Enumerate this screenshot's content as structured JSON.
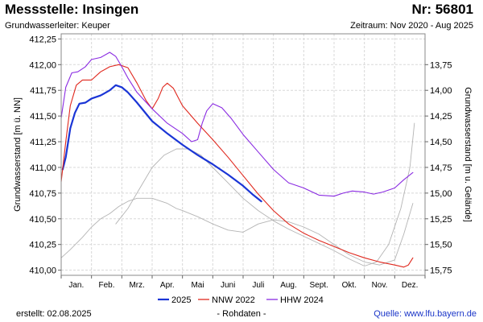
{
  "header": {
    "title": "Messstelle: Insingen",
    "station_number": "Nr: 56801",
    "aquifer": "Grundwasserleiter: Keuper",
    "period": "Zeitraum: Nov 2020 - Aug 2025"
  },
  "footer": {
    "created": "erstellt:  02.08.2025",
    "raw": "- Rohdaten -",
    "source": "Quelle: www.lfu.bayern.de"
  },
  "chart_data": {
    "type": "line",
    "ylabel": "Grundwasserstand [m ü. NN]",
    "y2label": "Grundwasserstand [m u. Gelände]",
    "ylim": [
      409.95,
      412.3
    ],
    "yticks": [
      "412,25",
      "412,00",
      "411,75",
      "411,50",
      "411,25",
      "411,00",
      "410,75",
      "410,50",
      "410,25",
      "410,00"
    ],
    "ytick_values": [
      412.25,
      412.0,
      411.75,
      411.5,
      411.25,
      411.0,
      410.75,
      410.5,
      410.25,
      410.0
    ],
    "y2ticks": [
      "13,75",
      "14,00",
      "14,25",
      "14,50",
      "14,75",
      "15,00",
      "15,25",
      "15,50",
      "15,75"
    ],
    "y2tick_values": [
      13.75,
      14.0,
      14.25,
      14.5,
      14.75,
      15.0,
      15.25,
      15.5,
      15.75
    ],
    "y2_offset": 425.75,
    "x_months": [
      "Jan.",
      "Feb.",
      "Mrz.",
      "Apr.",
      "Mai",
      "Juni",
      "Juli",
      "Aug.",
      "Sept.",
      "Okt.",
      "Nov.",
      "Dez."
    ],
    "xlim": [
      0,
      12
    ],
    "grid": true,
    "legend_position": "bottom",
    "series": [
      {
        "name": "2025",
        "color": "#1a35d6",
        "x": [
          0.05,
          0.15,
          0.3,
          0.45,
          0.6,
          0.8,
          1.0,
          1.3,
          1.6,
          1.8,
          2.0,
          2.2,
          2.5,
          3.0,
          3.5,
          4.0,
          4.5,
          5.0,
          5.5,
          6.0,
          6.3,
          6.6
        ],
        "y": [
          410.98,
          411.1,
          411.38,
          411.53,
          411.62,
          411.63,
          411.67,
          411.7,
          411.75,
          411.8,
          411.78,
          411.73,
          411.63,
          411.45,
          411.33,
          411.22,
          411.12,
          411.03,
          410.93,
          410.82,
          410.74,
          410.67
        ]
      },
      {
        "name": "NNW 2022",
        "color": "#e0281e",
        "x": [
          0.0,
          0.15,
          0.3,
          0.5,
          0.7,
          1.0,
          1.3,
          1.6,
          1.9,
          2.2,
          2.5,
          2.8,
          3.0,
          3.2,
          3.35,
          3.5,
          3.7,
          4.0,
          4.5,
          5.0,
          5.5,
          6.0,
          6.5,
          7.0,
          7.5,
          8.0,
          8.5,
          9.0,
          9.5,
          10.0,
          10.5,
          11.0,
          11.3,
          11.45,
          11.6
        ],
        "y": [
          410.86,
          411.25,
          411.6,
          411.8,
          411.85,
          411.85,
          411.93,
          411.98,
          412.0,
          411.97,
          411.82,
          411.65,
          411.57,
          411.67,
          411.78,
          411.82,
          411.77,
          411.6,
          411.43,
          411.27,
          411.1,
          410.92,
          410.74,
          410.58,
          410.45,
          410.36,
          410.29,
          410.23,
          410.17,
          410.12,
          410.08,
          410.05,
          410.03,
          410.05,
          410.12
        ]
      },
      {
        "name": "HHW 2024",
        "color": "#8a2be2",
        "x": [
          0.0,
          0.15,
          0.35,
          0.55,
          0.8,
          1.0,
          1.3,
          1.6,
          1.8,
          2.0,
          2.2,
          2.5,
          3.0,
          3.5,
          4.0,
          4.3,
          4.5,
          4.65,
          4.8,
          5.0,
          5.3,
          5.6,
          6.0,
          6.5,
          7.0,
          7.5,
          8.0,
          8.5,
          9.0,
          9.3,
          9.6,
          10.0,
          10.3,
          10.6,
          11.0,
          11.3,
          11.6
        ],
        "y": [
          411.48,
          411.78,
          411.92,
          411.93,
          411.98,
          412.05,
          412.07,
          412.12,
          412.08,
          411.98,
          411.87,
          411.73,
          411.57,
          411.43,
          411.33,
          411.25,
          411.27,
          411.43,
          411.55,
          411.62,
          411.58,
          411.48,
          411.32,
          411.15,
          410.98,
          410.85,
          410.8,
          410.73,
          410.72,
          410.75,
          410.77,
          410.76,
          410.74,
          410.76,
          410.8,
          410.88,
          410.95
        ]
      },
      {
        "name": "",
        "color": "#b4b4b4",
        "x": [
          0.0,
          0.3,
          0.7,
          1.0,
          1.3,
          1.6,
          1.9,
          2.2,
          2.5,
          2.8,
          3.0,
          3.2,
          3.5,
          3.8,
          4.0,
          4.5,
          5.0,
          5.5,
          6.0,
          6.5,
          7.0,
          7.5,
          8.0,
          8.5,
          9.0,
          9.5,
          10.0,
          10.5,
          11.0,
          11.3,
          11.6
        ],
        "y": [
          410.12,
          410.2,
          410.32,
          410.42,
          410.5,
          410.55,
          410.62,
          410.67,
          410.7,
          410.7,
          410.7,
          410.68,
          410.65,
          410.6,
          410.58,
          410.52,
          410.45,
          410.39,
          410.37,
          410.45,
          410.49,
          410.47,
          410.42,
          410.35,
          410.25,
          410.15,
          410.08,
          410.05,
          410.1,
          410.35,
          410.65
        ]
      },
      {
        "name": "",
        "color": "#b4b4b4",
        "x": [
          1.8,
          2.2,
          2.6,
          3.0,
          3.4,
          3.8,
          4.2,
          4.6,
          5.0,
          5.5,
          6.0,
          6.5,
          7.0,
          7.5,
          8.0,
          8.5,
          9.0,
          9.5,
          10.0,
          10.4,
          10.8,
          11.2,
          11.5,
          11.65
        ],
        "y": [
          410.45,
          410.6,
          410.8,
          411.0,
          411.12,
          411.18,
          411.18,
          411.12,
          411.0,
          410.85,
          410.7,
          410.58,
          410.48,
          410.4,
          410.33,
          410.26,
          410.19,
          410.11,
          410.04,
          410.08,
          410.25,
          410.6,
          411.0,
          411.43
        ]
      }
    ]
  }
}
